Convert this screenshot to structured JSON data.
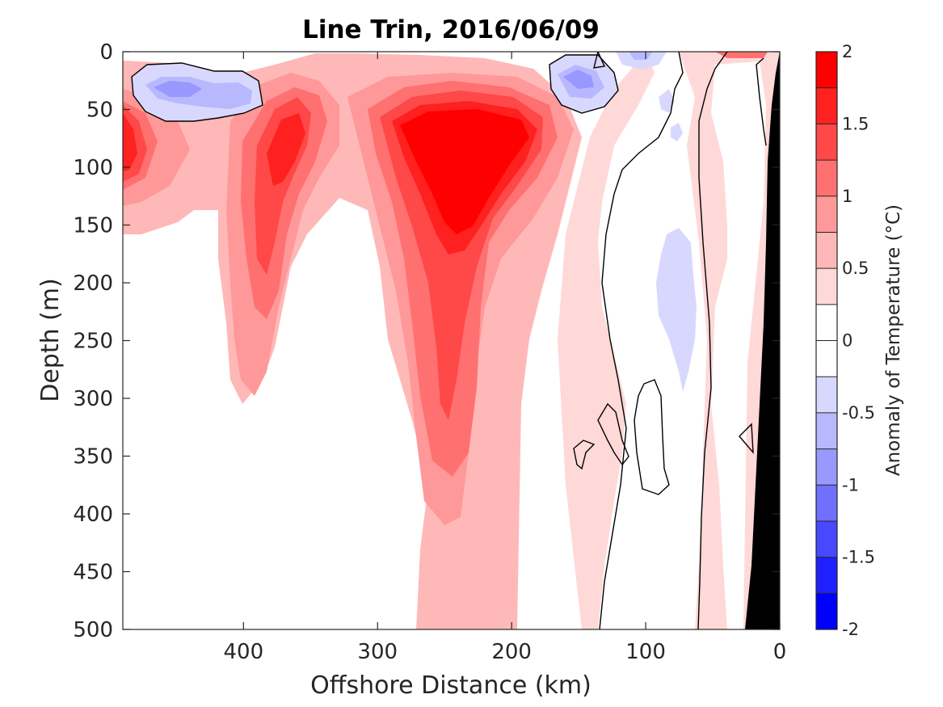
{
  "chart_data": {
    "type": "heatmap",
    "title": "Line Trin, 2016/06/09",
    "xlabel": "Offshore Distance (km)",
    "ylabel": "Depth (m)",
    "xlim": [
      490,
      0
    ],
    "ylim": [
      0,
      500
    ],
    "x_ticks": [
      400,
      300,
      200,
      100,
      0
    ],
    "y_ticks": [
      0,
      50,
      100,
      150,
      200,
      250,
      300,
      350,
      400,
      450,
      500
    ],
    "x_tick_labels": [
      "400",
      "300",
      "200",
      "100",
      "0"
    ],
    "y_tick_labels": [
      "0",
      "50",
      "100",
      "150",
      "200",
      "250",
      "300",
      "350",
      "400",
      "450",
      "500"
    ],
    "colorbar": {
      "label": "Anomaly of Temperature (°C)",
      "range": [
        -2,
        2
      ],
      "step": 0.25,
      "ticks": [
        2,
        1.5,
        1,
        0.5,
        0,
        -0.5,
        -1,
        -1.5,
        -2
      ],
      "tick_labels": [
        "2",
        "1.5",
        "1",
        "0.5",
        "0",
        "-0.5",
        "-1",
        "-1.5",
        "-2"
      ],
      "colors": [
        "#0000ff",
        "#2020ff",
        "#4848ff",
        "#7070ff",
        "#9898ff",
        "#b8b8ff",
        "#d8d8ff",
        "#ffffff",
        "#ffffff",
        "#ffd8d8",
        "#ffb8b8",
        "#ff9898",
        "#ff7070",
        "#ff4848",
        "#ff2020",
        "#ff0000"
      ]
    },
    "bathymetry_color": "#000000",
    "features": [
      {
        "type": "warm core",
        "center_km": 235,
        "center_depth_m": 110,
        "peak_anomaly": 2.0
      },
      {
        "type": "warm core",
        "center_km": 375,
        "center_depth_m": 100,
        "peak_anomaly": 1.5
      },
      {
        "type": "warm core",
        "center_km": 485,
        "center_depth_m": 90,
        "peak_anomaly": 1.5
      },
      {
        "type": "cold patch",
        "center_km": 455,
        "center_depth_m": 30,
        "peak_anomaly": -0.75
      },
      {
        "type": "cold patch",
        "center_km": 150,
        "center_depth_m": 25,
        "peak_anomaly": -0.75
      },
      {
        "type": "cold patch",
        "center_km": 105,
        "center_depth_m": 5,
        "peak_anomaly": -0.5
      },
      {
        "type": "cold patch",
        "center_km": 68,
        "center_depth_m": 230,
        "peak_anomaly": -0.25
      }
    ]
  }
}
